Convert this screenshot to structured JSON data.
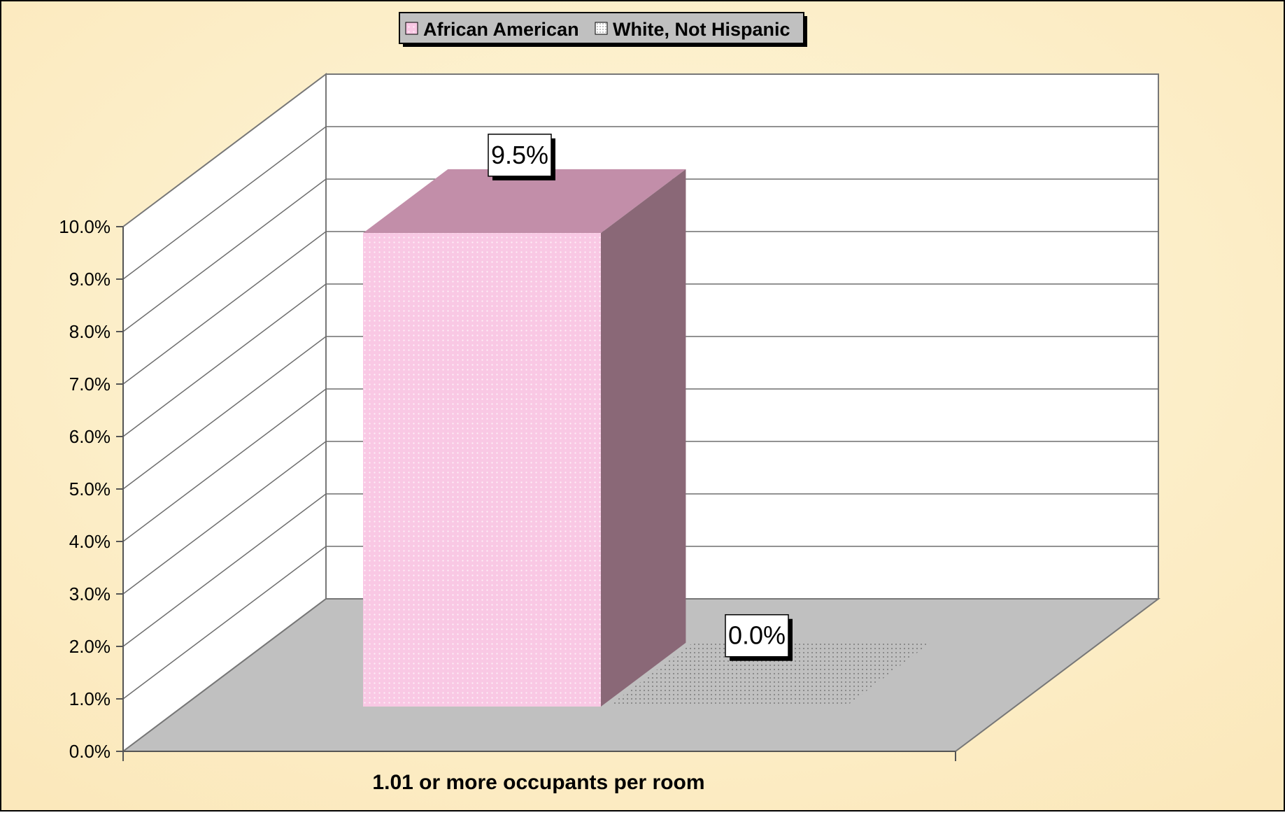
{
  "chart_data": {
    "type": "bar",
    "title": "",
    "xlabel": "",
    "ylabel": "",
    "categories": [
      "1.01 or more occupants per room"
    ],
    "series": [
      {
        "name": "African American",
        "values": [
          9.5
        ],
        "value_labels": [
          "9.5%"
        ],
        "color": "#f9c8e4"
      },
      {
        "name": "White, Not Hispanic",
        "values": [
          0.0
        ],
        "value_labels": [
          "0.0%"
        ],
        "color": "#bdbdbd"
      }
    ],
    "ylim": [
      0,
      10
    ],
    "yticks": [
      "0.0%",
      "1.0%",
      "2.0%",
      "3.0%",
      "4.0%",
      "5.0%",
      "6.0%",
      "7.0%",
      "8.0%",
      "9.0%",
      "10.0%"
    ],
    "grid": true,
    "legend_position": "top-center",
    "three_d": true,
    "colors": {
      "background": "#fdf0cc",
      "wall": "#ffffff",
      "floor": "#c0c0c0",
      "bar_front": "#f9c8e4",
      "bar_top": "#c28ea9",
      "bar_side": "#8a6877",
      "gridline": "#6e6e6e"
    }
  }
}
